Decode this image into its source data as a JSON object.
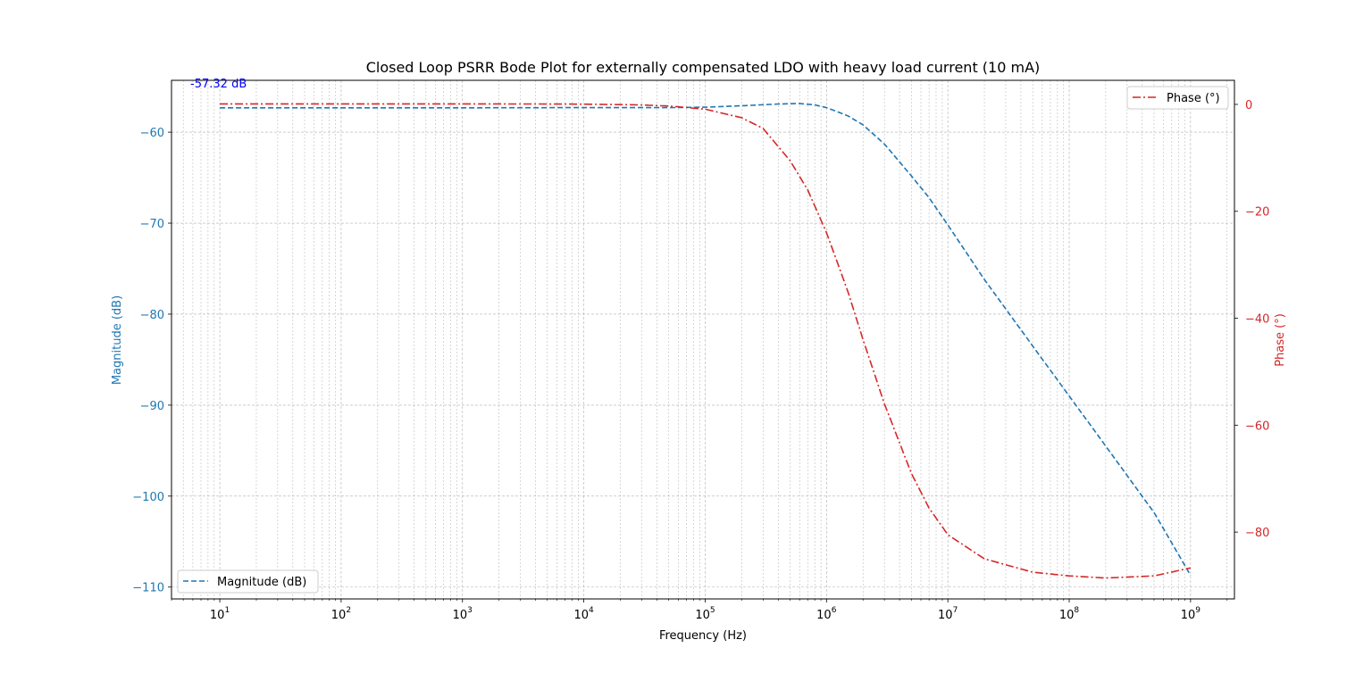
{
  "chart_data": {
    "type": "line",
    "title": "Closed Loop PSRR Bode Plot for externally compensated LDO with heavy load current (10 mA)",
    "xlabel": "Frequency (Hz)",
    "ylabel_left": "Magnitude (dB)",
    "ylabel_right": "Phase (°)",
    "x_scale": "log",
    "xlim": [
      4,
      2300000000.0
    ],
    "ylim_left": [
      -111.3,
      -54.3
    ],
    "ylim_right": [
      -92.5,
      4.5
    ],
    "x_ticks": [
      {
        "value": 10,
        "base": "10",
        "exp": "1"
      },
      {
        "value": 100,
        "base": "10",
        "exp": "2"
      },
      {
        "value": 1000,
        "base": "10",
        "exp": "3"
      },
      {
        "value": 10000,
        "base": "10",
        "exp": "4"
      },
      {
        "value": 100000,
        "base": "10",
        "exp": "5"
      },
      {
        "value": 1000000,
        "base": "10",
        "exp": "6"
      },
      {
        "value": 10000000,
        "base": "10",
        "exp": "7"
      },
      {
        "value": 100000000,
        "base": "10",
        "exp": "8"
      },
      {
        "value": 1000000000,
        "base": "10",
        "exp": "9"
      }
    ],
    "y_ticks_left": [
      {
        "value": -60,
        "label": "−60"
      },
      {
        "value": -70,
        "label": "−70"
      },
      {
        "value": -80,
        "label": "−80"
      },
      {
        "value": -90,
        "label": "−90"
      },
      {
        "value": -100,
        "label": "−100"
      },
      {
        "value": -110,
        "label": "−110"
      }
    ],
    "y_ticks_right": [
      {
        "value": 0,
        "label": "0"
      },
      {
        "value": -20,
        "label": "−20"
      },
      {
        "value": -40,
        "label": "−40"
      },
      {
        "value": -60,
        "label": "−60"
      },
      {
        "value": -80,
        "label": "−80"
      }
    ],
    "grid": true,
    "series": [
      {
        "name": "Magnitude (dB)",
        "axis": "left",
        "color": "#1f77b4",
        "style": "dashed",
        "legend_position": "bottom-left",
        "x": [
          10,
          100,
          1000,
          10000,
          50000,
          100000,
          200000,
          400000,
          600000,
          800000,
          1000000,
          1500000,
          2000000,
          3000000,
          5000000,
          7000000,
          10000000,
          20000000,
          50000000,
          100000000,
          200000000,
          500000000,
          1000000000
        ],
        "y": [
          -57.32,
          -57.32,
          -57.32,
          -57.3,
          -57.3,
          -57.25,
          -57.1,
          -56.9,
          -56.85,
          -57.0,
          -57.3,
          -58.2,
          -59.2,
          -61.3,
          -64.8,
          -67.2,
          -70.2,
          -76.2,
          -83.5,
          -89.0,
          -94.5,
          -101.8,
          -108.7
        ]
      },
      {
        "name": "Phase (°)",
        "axis": "right",
        "color": "#d62728",
        "style": "dashdot",
        "legend_position": "top-right",
        "x": [
          10,
          100,
          1000,
          10000,
          30000,
          50000,
          100000,
          200000,
          300000,
          500000,
          700000,
          1000000,
          1500000,
          2000000,
          3000000,
          5000000,
          7000000,
          10000000,
          20000000,
          50000000,
          100000000,
          200000000,
          500000000,
          1000000000
        ],
        "y": [
          0.1,
          0.1,
          0.1,
          0.05,
          -0.1,
          -0.3,
          -0.9,
          -2.5,
          -4.5,
          -10.5,
          -16.0,
          -24.0,
          -35.0,
          -44.0,
          -56.0,
          -69.0,
          -75.5,
          -80.5,
          -85.0,
          -87.5,
          -88.2,
          -88.6,
          -88.2,
          -86.7
        ]
      }
    ],
    "annotations": [
      {
        "text": "-57.32 dB",
        "color": "#0000ff",
        "x": 10,
        "y_axis": "left",
        "y": -54.6
      }
    ]
  }
}
